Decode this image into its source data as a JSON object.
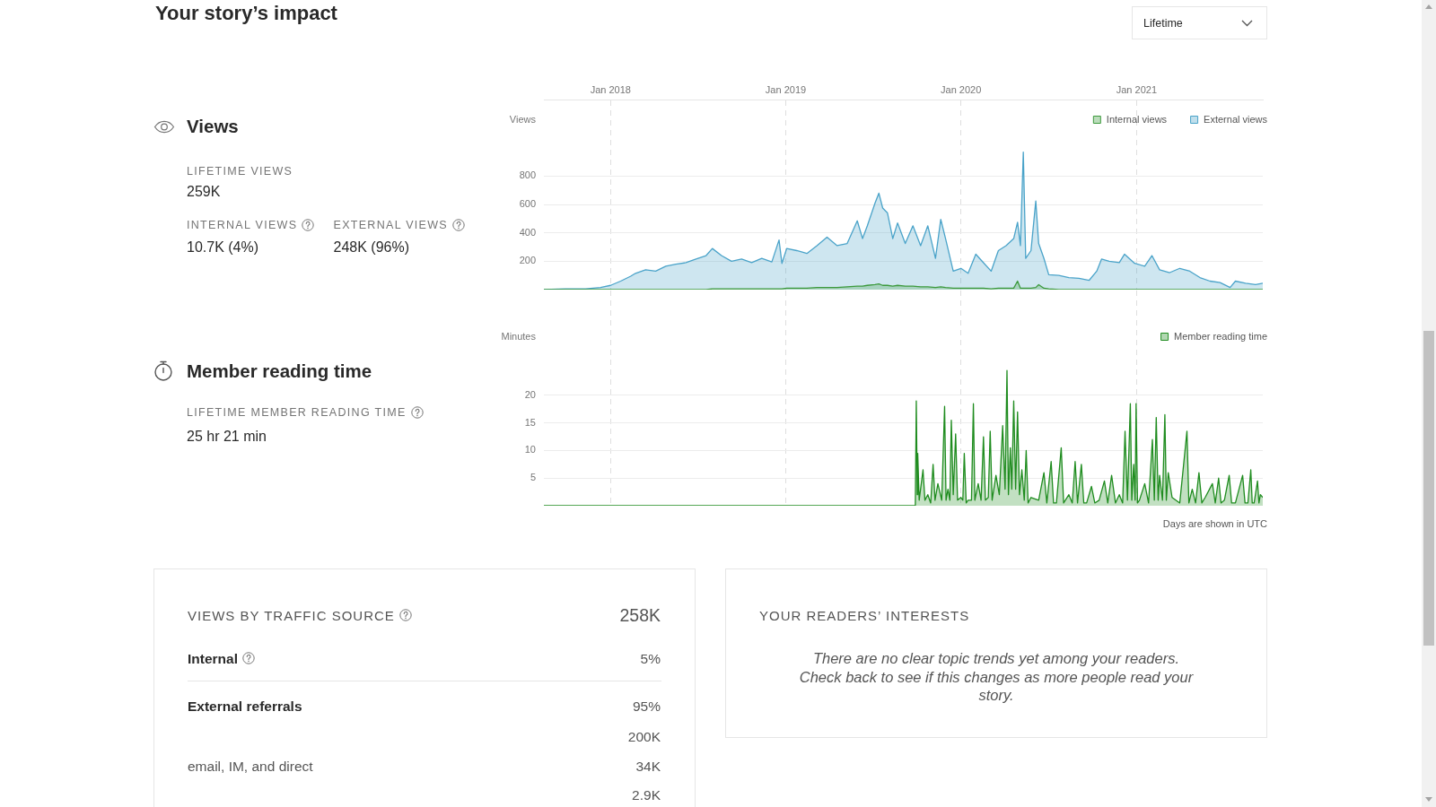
{
  "chart_data": [
    {
      "type": "other",
      "title": "Your story’s impact",
      "annotations": [
        "Lifetime"
      ]
    },
    {
      "type": "other",
      "title": "Views",
      "annotations": [
        "LIFETIME VIEWS",
        "259K",
        "INTERNAL VIEWS",
        "10.7K (4%)",
        "EXTERNAL VIEWS",
        "248K (96%)"
      ]
    },
    {
      "type": "area",
      "ylabel": "Views",
      "legend": "top right",
      "grid": true,
      "marker": "none",
      "xlim": [
        "2017-08-15",
        "2021-09-21"
      ],
      "xticks": [
        {
          "value": "2018-01-01",
          "label": "Jan 2018"
        },
        {
          "value": "2019-01-01",
          "label": "Jan 2019"
        },
        {
          "value": "2020-01-01",
          "label": "Jan 2020"
        },
        {
          "value": "2021-01-01",
          "label": "Jan 2021"
        }
      ],
      "ylim": [
        0,
        1340
      ],
      "yticks": [
        200,
        400,
        600,
        800
      ],
      "x": [
        "2017-08-15",
        "2017-09-29",
        "2017-11-10",
        "2017-12-11",
        "2018-01-01",
        "2018-01-22",
        "2018-02-12",
        "2018-02-22",
        "2018-03-15",
        "2018-04-05",
        "2018-04-26",
        "2018-05-17",
        "2018-06-07",
        "2018-06-28",
        "2018-07-19",
        "2018-08-01",
        "2018-08-20",
        "2018-09-10",
        "2018-10-01",
        "2018-10-22",
        "2018-11-12",
        "2018-12-03",
        "2018-12-18",
        "2018-12-24",
        "2019-01-03",
        "2019-01-24",
        "2019-02-14",
        "2019-03-07",
        "2019-03-28",
        "2019-04-18",
        "2019-05-09",
        "2019-05-30",
        "2019-06-10",
        "2019-06-20",
        "2019-07-06",
        "2019-07-14",
        "2019-07-22",
        "2019-08-01",
        "2019-08-12",
        "2019-08-22",
        "2019-09-07",
        "2019-09-23",
        "2019-10-09",
        "2019-10-24",
        "2019-11-09",
        "2019-11-20",
        "2019-11-30",
        "2019-12-16",
        "2020-01-01",
        "2020-01-16",
        "2020-02-01",
        "2020-02-17",
        "2020-03-04",
        "2020-03-19",
        "2020-04-04",
        "2020-04-20",
        "2020-04-28",
        "2020-05-04",
        "2020-05-10",
        "2020-05-15",
        "2020-05-26",
        "2020-06-05",
        "2020-06-11",
        "2020-06-22",
        "2020-07-02",
        "2020-07-23",
        "2020-08-13",
        "2020-09-03",
        "2020-09-24",
        "2020-10-10",
        "2020-10-20",
        "2020-11-05",
        "2020-11-26",
        "2020-12-07",
        "2020-12-28",
        "2021-01-18",
        "2021-02-02",
        "2021-02-18",
        "2021-03-11",
        "2021-04-01",
        "2021-04-22",
        "2021-05-13",
        "2021-06-03",
        "2021-06-24",
        "2021-07-15",
        "2021-07-26",
        "2021-08-16",
        "2021-09-06",
        "2021-09-21"
      ],
      "series": [
        {
          "name": "Internal views",
          "color": "#3d9a3d",
          "values": [
            0,
            0,
            0,
            0,
            0,
            0,
            0,
            0,
            0,
            0,
            0,
            0,
            0,
            0,
            0,
            5,
            5,
            5,
            5,
            5,
            5,
            5,
            5,
            5,
            10,
            10,
            10,
            15,
            15,
            15,
            20,
            25,
            25,
            30,
            35,
            40,
            30,
            30,
            25,
            30,
            25,
            25,
            20,
            20,
            15,
            20,
            15,
            10,
            10,
            10,
            10,
            10,
            5,
            10,
            10,
            10,
            60,
            10,
            10,
            10,
            10,
            15,
            35,
            10,
            5,
            0,
            0,
            0,
            0,
            0,
            0,
            0,
            0,
            0,
            0,
            0,
            0,
            0,
            0,
            0,
            0,
            0,
            0,
            0,
            0,
            0,
            0,
            0,
            0
          ]
        },
        {
          "name": "External views",
          "color": "#4aa3c9",
          "values": [
            0,
            5,
            5,
            15,
            30,
            60,
            95,
            115,
            140,
            130,
            165,
            180,
            190,
            215,
            240,
            290,
            240,
            200,
            215,
            190,
            220,
            195,
            350,
            185,
            290,
            275,
            255,
            310,
            370,
            310,
            325,
            485,
            360,
            450,
            610,
            680,
            575,
            540,
            360,
            470,
            325,
            450,
            310,
            450,
            220,
            495,
            360,
            130,
            150,
            115,
            250,
            190,
            130,
            275,
            310,
            360,
            475,
            310,
            970,
            220,
            275,
            625,
            325,
            220,
            105,
            100,
            85,
            80,
            65,
            130,
            215,
            200,
            190,
            250,
            185,
            165,
            240,
            140,
            120,
            150,
            130,
            85,
            60,
            50,
            15,
            60,
            45,
            35,
            45
          ]
        }
      ]
    },
    {
      "type": "other",
      "title": "Member reading time",
      "annotations": [
        "LIFETIME MEMBER READING TIME",
        "25 hr 21 min"
      ]
    },
    {
      "type": "area",
      "ylabel": "Minutes",
      "legend": "top right",
      "grid": true,
      "marker": "none",
      "tick_labels": "y",
      "xlim": [
        "2017-08-15",
        "2021-09-21"
      ],
      "xticks": [
        {
          "value": "2018-01-01",
          "label": null
        },
        {
          "value": "2019-01-01",
          "label": null
        },
        {
          "value": "2020-01-01",
          "label": null
        },
        {
          "value": "2021-01-01",
          "label": null
        }
      ],
      "ylim": [
        0,
        39
      ],
      "yticks": [
        5,
        10,
        15,
        20
      ],
      "x": [
        "2017-08-15",
        "2019-09-28",
        "2019-09-30",
        "2019-10-02",
        "2019-10-03",
        "2019-10-06",
        "2019-10-14",
        "2019-10-18",
        "2019-10-24",
        "2019-10-30",
        "2019-11-04",
        "2019-11-08",
        "2019-11-14",
        "2019-11-22",
        "2019-11-28",
        "2019-12-01",
        "2019-12-05",
        "2019-12-09",
        "2019-12-12",
        "2019-12-16",
        "2019-12-21",
        "2019-12-25",
        "2020-01-01",
        "2020-01-05",
        "2020-01-08",
        "2020-01-12",
        "2020-01-16",
        "2020-01-23",
        "2020-01-27",
        "2020-01-30",
        "2020-02-06",
        "2020-02-12",
        "2020-02-17",
        "2020-02-21",
        "2020-02-27",
        "2020-03-02",
        "2020-03-06",
        "2020-03-14",
        "2020-03-21",
        "2020-03-28",
        "2020-04-02",
        "2020-04-06",
        "2020-04-09",
        "2020-04-13",
        "2020-04-16",
        "2020-04-20",
        "2020-04-24",
        "2020-04-28",
        "2020-05-02",
        "2020-05-07",
        "2020-05-12",
        "2020-05-16",
        "2020-05-20",
        "2020-05-26",
        "2020-06-11",
        "2020-06-22",
        "2020-06-28",
        "2020-07-07",
        "2020-07-12",
        "2020-07-18",
        "2020-07-28",
        "2020-08-02",
        "2020-08-13",
        "2020-08-20",
        "2020-08-26",
        "2020-08-31",
        "2020-09-08",
        "2020-09-13",
        "2020-09-19",
        "2020-09-29",
        "2020-10-06",
        "2020-10-15",
        "2020-10-26",
        "2020-11-02",
        "2020-11-10",
        "2020-11-18",
        "2020-11-26",
        "2020-12-03",
        "2020-12-08",
        "2020-12-13",
        "2020-12-19",
        "2020-12-22",
        "2020-12-26",
        "2020-12-29",
        "2020-12-31",
        "2021-01-03",
        "2021-01-07",
        "2021-01-18",
        "2021-01-26",
        "2021-02-03",
        "2021-02-07",
        "2021-02-11",
        "2021-02-15",
        "2021-02-18",
        "2021-02-24",
        "2021-03-01",
        "2021-03-04",
        "2021-03-08",
        "2021-03-16",
        "2021-04-01",
        "2021-04-16",
        "2021-04-20",
        "2021-04-27",
        "2021-05-04",
        "2021-05-11",
        "2021-05-17",
        "2021-05-24",
        "2021-06-08",
        "2021-06-14",
        "2021-06-21",
        "2021-06-26",
        "2021-07-03",
        "2021-07-13",
        "2021-07-18",
        "2021-07-26",
        "2021-08-10",
        "2021-08-15",
        "2021-08-21",
        "2021-08-27",
        "2021-08-30",
        "2021-09-03",
        "2021-09-10",
        "2021-09-13",
        "2021-09-16",
        "2021-09-21"
      ],
      "series": [
        {
          "name": "Member reading time",
          "color": "#1f8c1f",
          "values": [
            0,
            0,
            19,
            2,
            9.5,
            1,
            6.5,
            1,
            2,
            0.5,
            7.5,
            1,
            4,
            1,
            18,
            1,
            3,
            1,
            15.5,
            2,
            13,
            1,
            1.5,
            1,
            9.5,
            0.5,
            1,
            1,
            18.5,
            1,
            4,
            1,
            12.5,
            1,
            1.5,
            13.5,
            1,
            5.5,
            2,
            14.5,
            3,
            24.5,
            2,
            10.5,
            3,
            19,
            3,
            17,
            2,
            6.5,
            1,
            10,
            0.5,
            1.5,
            1,
            6,
            0.5,
            8,
            0.5,
            0.5,
            10.5,
            0.5,
            2,
            0.5,
            8,
            0.5,
            7.5,
            0.5,
            0.5,
            3.5,
            0.5,
            1,
            4.5,
            0.5,
            5.5,
            0.5,
            2,
            0.5,
            13.5,
            1,
            18.5,
            1,
            7.5,
            1,
            18.5,
            0.5,
            1,
            4,
            0.5,
            12,
            1,
            16,
            1,
            5.5,
            1,
            16.5,
            1,
            6,
            1.5,
            0.5,
            13.5,
            0.5,
            3,
            0.5,
            6,
            0.5,
            1.5,
            4,
            0.5,
            5,
            0.5,
            1,
            5.5,
            0.5,
            0.5,
            5.5,
            0.5,
            0.5,
            6.5,
            0.5,
            0.5,
            4.5,
            0.5,
            2,
            1.5
          ]
        }
      ],
      "annotations": [
        "Days are shown in UTC"
      ]
    },
    {
      "type": "other",
      "title": "VIEWS BY TRAFFIC SOURCE",
      "annotations": [
        "258K",
        "Internal",
        "5%",
        "External referrals",
        "95%",
        "200K",
        "email, IM, and direct",
        "34K",
        "2.9K"
      ]
    },
    {
      "type": "other",
      "title": "YOUR READERS’ INTERESTS",
      "annotations": [
        "There are no clear topic trends yet among your readers. Check back to see if this changes as more people read your story."
      ]
    }
  ]
}
